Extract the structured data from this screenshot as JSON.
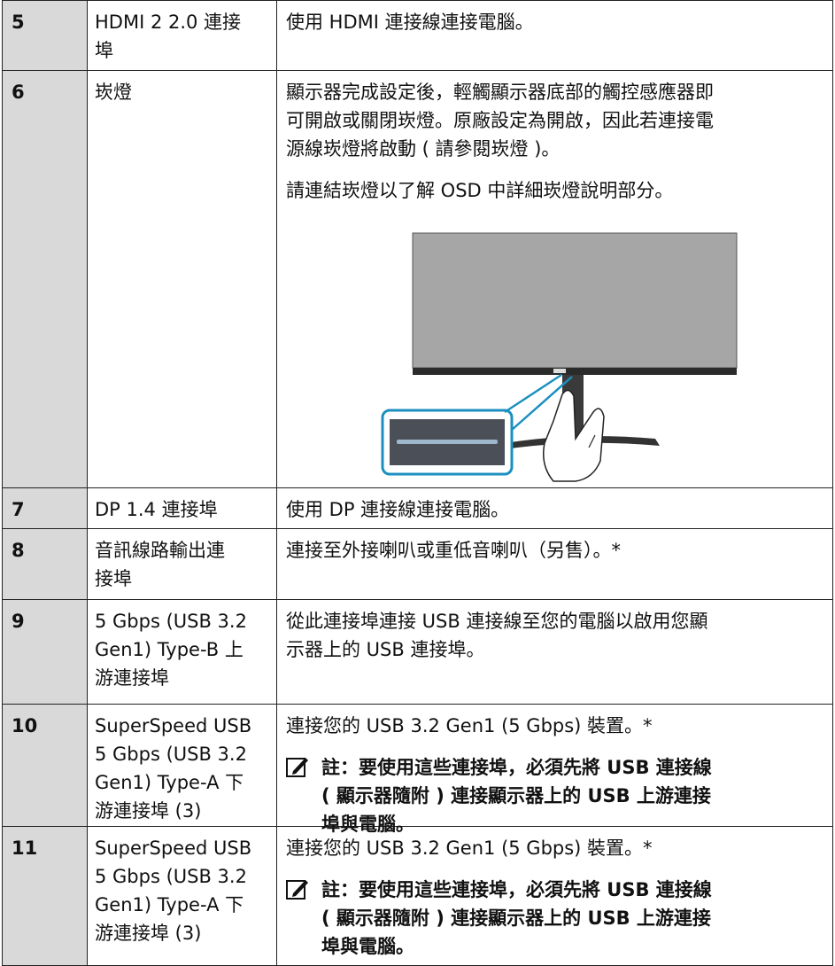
{
  "table": {
    "rows": [
      {
        "number": "5",
        "name": [
          "HDMI 2 2.0 連接",
          "埠"
        ],
        "description": [
          [
            "使用 HDMI 連接線連接電腦。"
          ]
        ]
      },
      {
        "number": "6",
        "name": [
          "崁燈"
        ],
        "description": [
          [
            "顯示器完成設定後，輕觸顯示器底部的觸控感應器即",
            "可開啟或關閉崁燈。原廠設定為開啟，因此若連接電",
            "源線崁燈將啟動 ( 請參閱崁燈 )。"
          ],
          [
            "請連結崁燈以了解 OSD 中詳細崁燈說明部分。"
          ]
        ]
      },
      {
        "number": "7",
        "name": [
          "DP 1.4 連接埠"
        ],
        "description": [
          [
            "使用 DP 連接線連接電腦。"
          ]
        ]
      },
      {
        "number": "8",
        "name": [
          "音訊線路輸出連",
          "接埠"
        ],
        "description": [
          [
            "連接至外接喇叭或重低音喇叭（另售）。*"
          ]
        ]
      },
      {
        "number": "9",
        "name": [
          "5 Gbps (USB 3.2",
          "Gen1) Type-B 上",
          "游連接埠"
        ],
        "description": [
          [
            "從此連接埠連接 USB 連接線至您的電腦以啟用您顯",
            "示器上的 USB 連接埠。"
          ]
        ]
      },
      {
        "number": "10",
        "name": [
          "SuperSpeed USB",
          "5 Gbps (USB 3.2",
          "Gen1) Type-A 下",
          "游連接埠 (3)"
        ],
        "description": [
          [
            "連接您的 USB 3.2 Gen1 (5 Gbps) 裝置。*"
          ]
        ],
        "note": [
          "註：要使用這些連接埠，必須先將 USB 連接線",
          "( 顯示器隨附 ) 連接顯示器上的 USB 上游連接",
          "埠與電腦。"
        ]
      },
      {
        "number": "11",
        "name": [
          "SuperSpeed USB",
          "5 Gbps (USB 3.2",
          "Gen1) Type-A 下",
          "游連接埠 (3)"
        ],
        "description": [
          [
            "連接您的 USB 3.2 Gen1 (5 Gbps) 裝置。*"
          ]
        ],
        "note": [
          "註：要使用這些連接埠，必須先將 USB 連接線",
          "( 顯示器隨附 ) 連接顯示器上的 USB 上游連接",
          "埠與電腦。"
        ]
      }
    ]
  }
}
